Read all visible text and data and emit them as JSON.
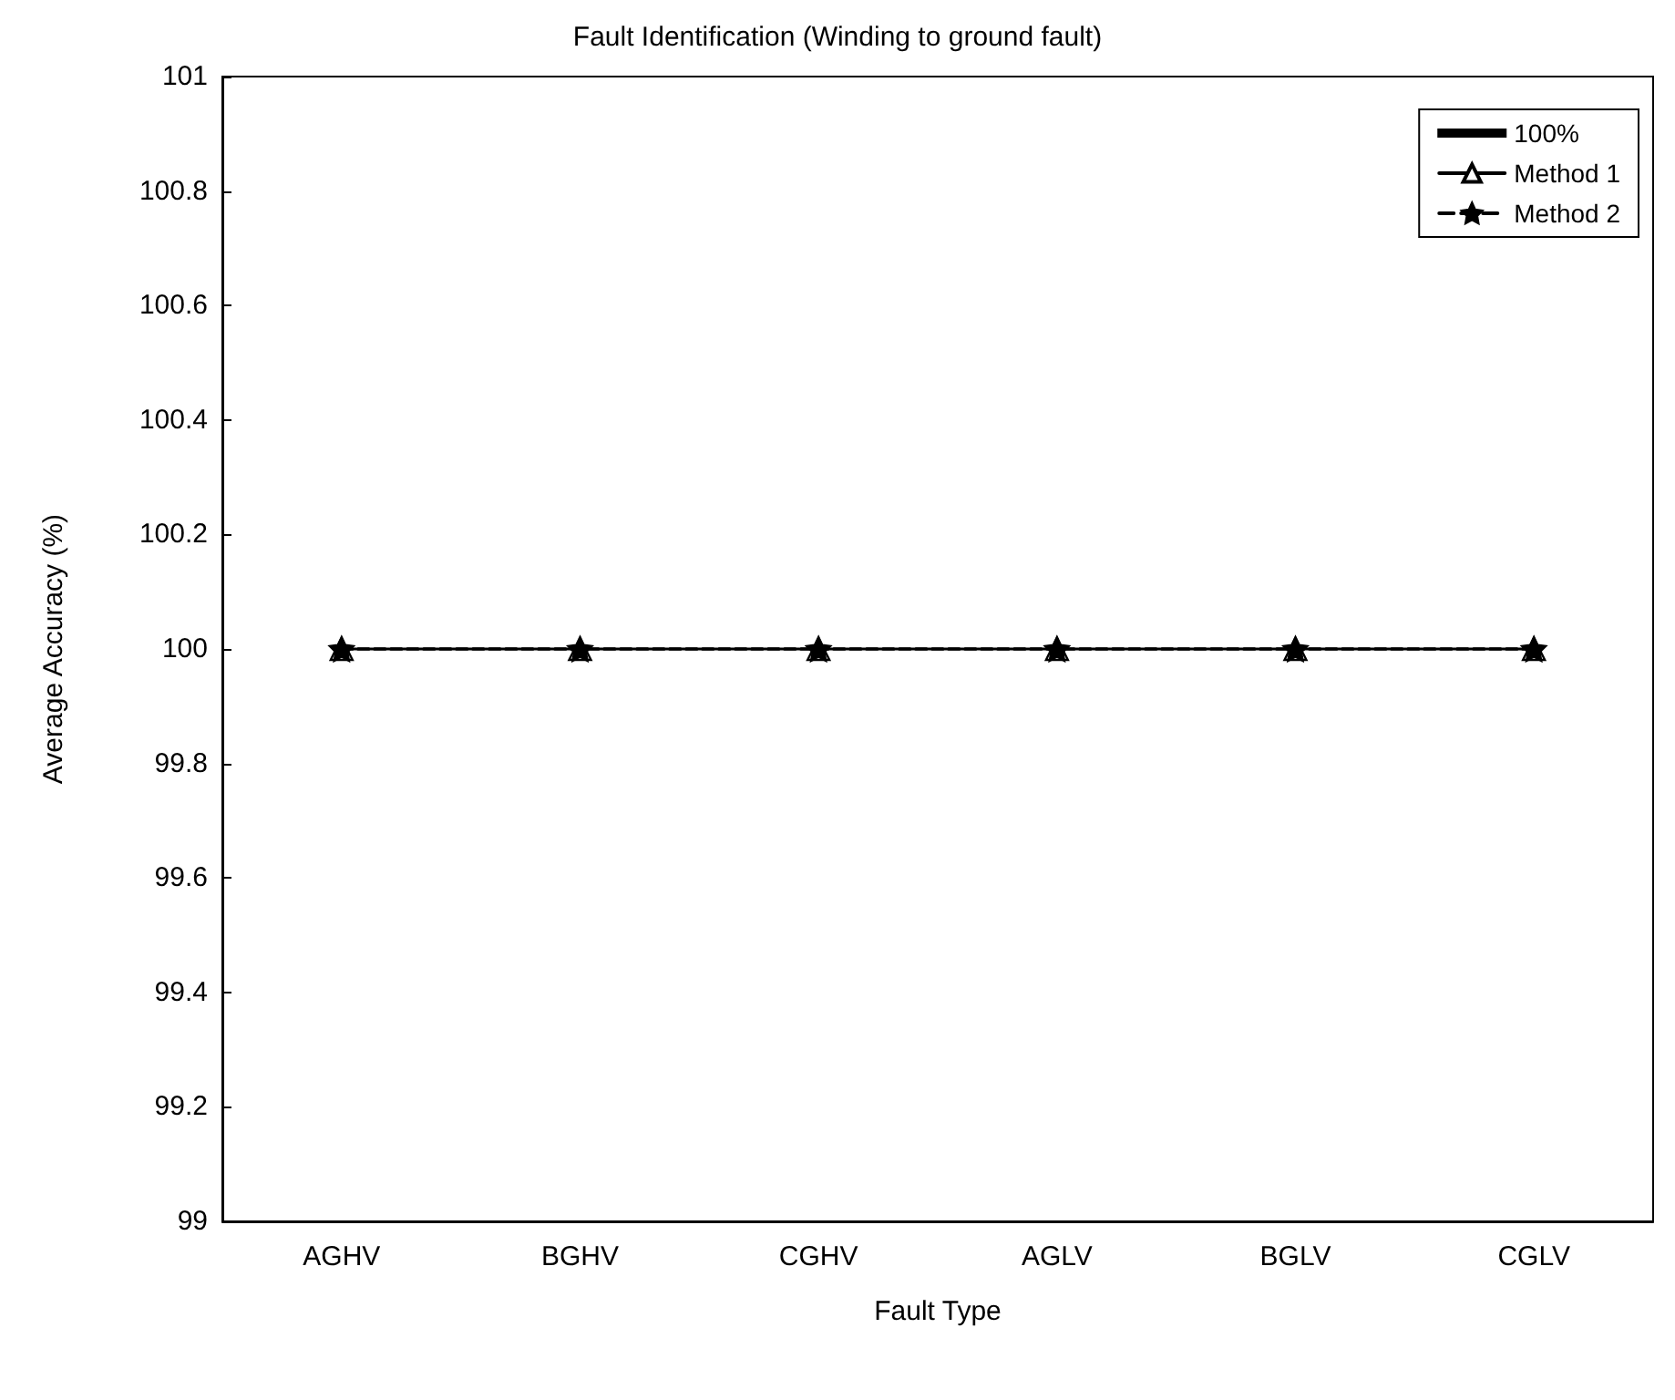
{
  "chart_data": {
    "type": "line",
    "title": "Fault Identification (Winding to ground fault)",
    "xlabel": "Fault Type",
    "ylabel": "Average Accuracy (%)",
    "categories": [
      "AGHV",
      "BGHV",
      "CGHV",
      "AGLV",
      "BGLV",
      "CGLV"
    ],
    "series": [
      {
        "name": "Method 1",
        "color": "#000000",
        "values": [
          100,
          100,
          100,
          100,
          100,
          100
        ],
        "marker": "triangle",
        "line_style": "solid"
      },
      {
        "name": "Method 2",
        "color": "#000000",
        "values": [
          100,
          100,
          100,
          100,
          100,
          100
        ],
        "marker": "star",
        "line_style": "dashed"
      },
      {
        "name": "100%",
        "color": "#000000",
        "values": [
          100,
          100,
          100,
          100,
          100,
          100
        ],
        "marker": "none",
        "line_style": "dashed"
      }
    ],
    "ylim": [
      99,
      101
    ],
    "yticks": [
      99,
      99.2,
      99.4,
      99.6,
      99.8,
      100,
      100.2,
      100.4,
      100.6,
      100.8,
      101
    ],
    "grid": false,
    "legend": "top right"
  }
}
